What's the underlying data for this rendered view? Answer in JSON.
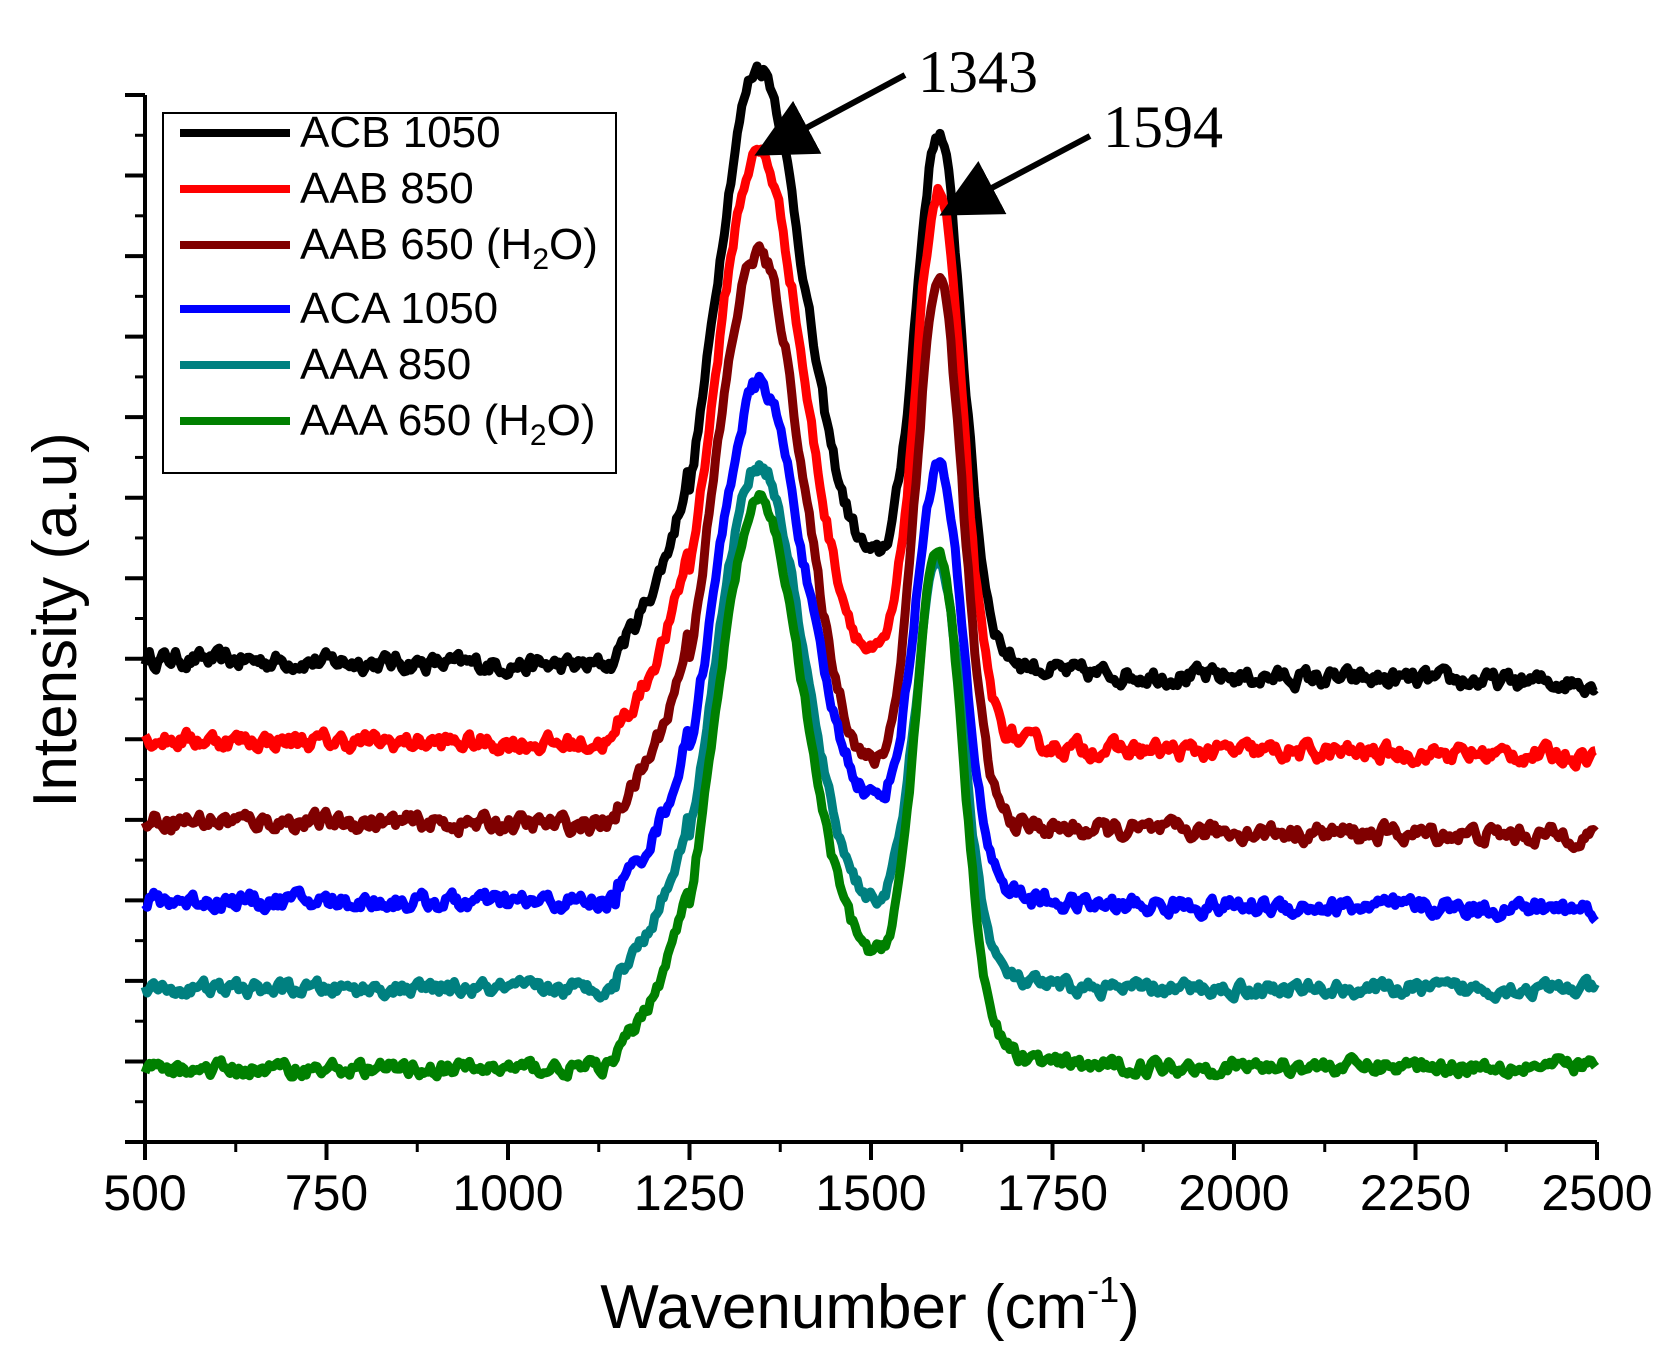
{
  "chart_data": {
    "type": "line",
    "title": "",
    "xlabel": "Wavenumber (cm",
    "xlabel_sup": "-1",
    "xlabel_end": ")",
    "ylabel": "Intensity (a.u)",
    "xlim": [
      500,
      2500
    ],
    "ylim": [
      0,
      13
    ],
    "y_tick_labels": false,
    "grid": false,
    "legend_position": "top-left",
    "x_ticks": [
      500,
      750,
      1000,
      1250,
      1500,
      1750,
      2000,
      2250,
      2500
    ],
    "x_tick_labels": [
      "500",
      "750",
      "1000",
      "1250",
      "1500",
      "1750",
      "2000",
      "2250",
      "2500"
    ],
    "annotations": [
      {
        "text": "1343",
        "x": 1343
      },
      {
        "text": "1594",
        "x": 1594
      }
    ],
    "series": [
      {
        "name": "ACB 1050",
        "label_main": "ACB 1050",
        "label_sub": "",
        "label_tail": "",
        "color": "#000000",
        "baseline": 6.0,
        "slope": -0.3,
        "d_peak": 6.85,
        "g_peak": 6.05,
        "valley": 2.0,
        "noise": 0.18
      },
      {
        "name": "AAB 850",
        "label_main": "AAB 850",
        "label_sub": "",
        "label_tail": "",
        "color": "#ff0000",
        "baseline": 5.0,
        "slope": -0.2,
        "d_peak": 6.9,
        "g_peak": 6.45,
        "valley": 1.5,
        "noise": 0.18
      },
      {
        "name": "AAB 650 (H2O)",
        "label_main": "AAB 650 (H",
        "label_sub": "2",
        "label_tail": "O)",
        "color": "#800000",
        "baseline": 4.0,
        "slope": -0.2,
        "d_peak": 6.85,
        "g_peak": 6.55,
        "valley": 0.9,
        "noise": 0.18
      },
      {
        "name": "ACA 1050",
        "label_main": "ACA 1050",
        "label_sub": "",
        "label_tail": "",
        "color": "#0000ff",
        "baseline": 3.0,
        "slope": -0.1,
        "d_peak": 5.85,
        "g_peak": 4.85,
        "valley": 1.9,
        "noise": 0.18
      },
      {
        "name": "AAA 850",
        "label_main": "AAA 850",
        "label_sub": "",
        "label_tail": "",
        "color": "#008080",
        "baseline": 1.9,
        "slope": 0.0,
        "d_peak": 6.05,
        "g_peak": 4.85,
        "valley": 1.5,
        "noise": 0.15
      },
      {
        "name": "AAA 650 (H2O)",
        "label_main": "AAA 650 (H",
        "label_sub": "2",
        "label_tail": "O)",
        "color": "#008000",
        "baseline": 0.9,
        "slope": 0.05,
        "d_peak": 6.4,
        "g_peak": 5.8,
        "valley": 2.0,
        "noise": 0.15
      }
    ]
  }
}
